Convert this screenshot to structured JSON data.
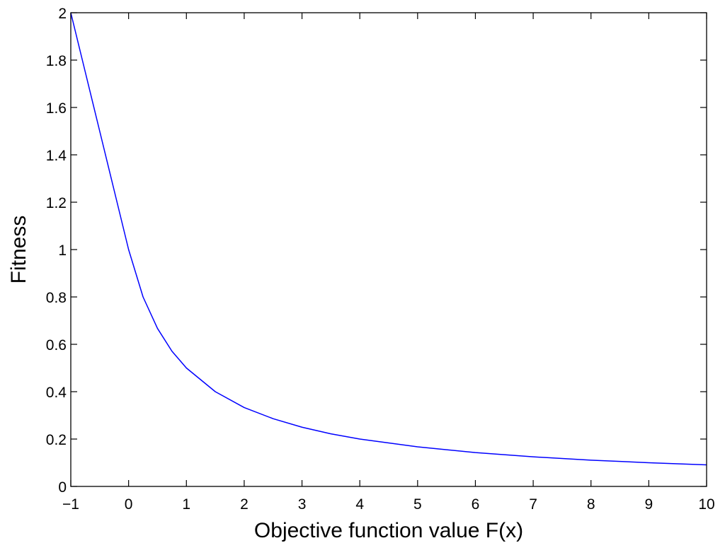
{
  "chart_data": {
    "type": "line",
    "title": "",
    "xlabel": "Objective function value F(x)",
    "ylabel": "Fitness",
    "xlim": [
      -1,
      10
    ],
    "ylim": [
      0,
      2
    ],
    "xticks": [
      -1,
      0,
      1,
      2,
      3,
      4,
      5,
      6,
      7,
      8,
      9,
      10
    ],
    "yticks": [
      0,
      0.2,
      0.4,
      0.6,
      0.8,
      1,
      1.2,
      1.4,
      1.6,
      1.8,
      2
    ],
    "xtick_labels": [
      "−1",
      "0",
      "1",
      "2",
      "3",
      "4",
      "5",
      "6",
      "7",
      "8",
      "9",
      "10"
    ],
    "ytick_labels": [
      "0",
      "0.2",
      "0.4",
      "0.6",
      "0.8",
      "1",
      "1.2",
      "1.4",
      "1.6",
      "1.8",
      "2"
    ],
    "grid": false,
    "legend": "none",
    "series": [
      {
        "color": "#0000ff",
        "x": [
          -1,
          -0.75,
          -0.5,
          -0.25,
          0,
          0.25,
          0.5,
          0.75,
          1,
          1.5,
          2,
          2.5,
          3,
          3.5,
          4,
          5,
          6,
          7,
          8,
          9,
          10
        ],
        "y": [
          2,
          1.75,
          1.5,
          1.25,
          1,
          0.8,
          0.667,
          0.571,
          0.5,
          0.4,
          0.333,
          0.286,
          0.25,
          0.222,
          0.2,
          0.167,
          0.143,
          0.125,
          0.111,
          0.1,
          0.091
        ]
      }
    ]
  }
}
